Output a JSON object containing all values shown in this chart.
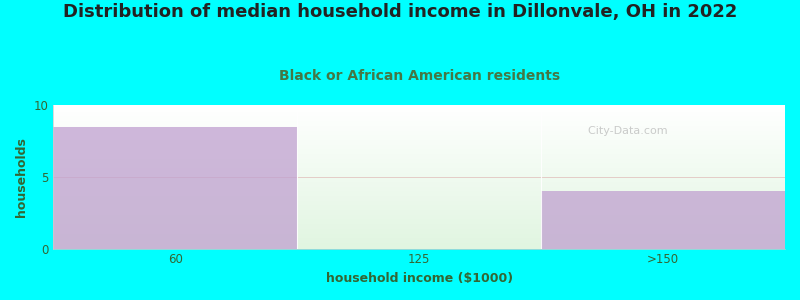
{
  "title": "Distribution of median household income in Dillonvale, OH in 2022",
  "subtitle": "Black or African American residents",
  "categories": [
    "60",
    "125",
    ">150"
  ],
  "values": [
    8.5,
    0,
    4.0
  ],
  "bar_color": "#c0a0d0",
  "bar_alpha": 0.75,
  "background_color": "#00FFFF",
  "xlabel": "household income ($1000)",
  "ylabel": "households",
  "ylim": [
    0,
    10
  ],
  "yticks": [
    0,
    5,
    10
  ],
  "title_fontsize": 13,
  "subtitle_fontsize": 10,
  "axis_label_fontsize": 9,
  "tick_fontsize": 8.5,
  "title_color": "#222222",
  "subtitle_color": "#447744",
  "axis_label_color": "#336633",
  "tick_color": "#336633",
  "watermark": "  City-Data.com"
}
